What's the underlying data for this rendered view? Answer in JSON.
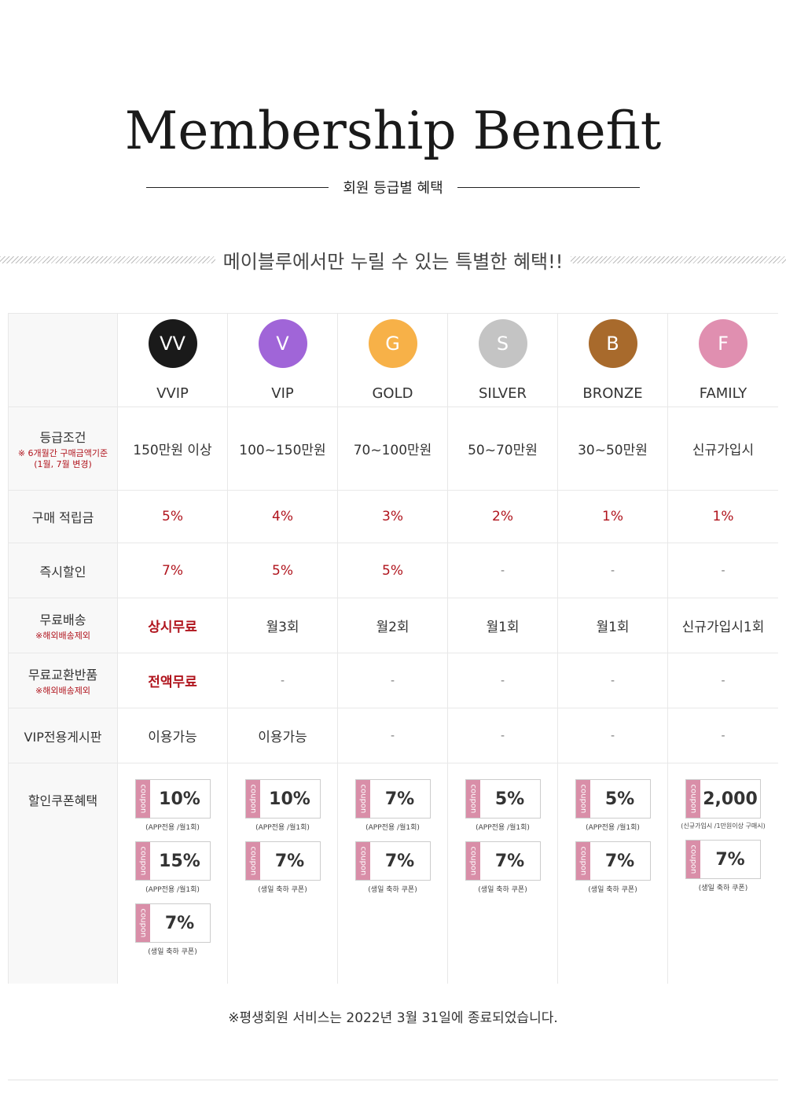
{
  "title": "Membership Benefit",
  "subtitle": "회원 등급별 혜택",
  "slogan": "메이블루에서만 누릴 수 있는 특별한 혜택!!",
  "grades": [
    {
      "badge": "VV",
      "name": "VVIP",
      "color": "#1a1a1a"
    },
    {
      "badge": "V",
      "name": "VIP",
      "color": "#a065d8"
    },
    {
      "badge": "G",
      "name": "GOLD",
      "color": "#f7b148"
    },
    {
      "badge": "S",
      "name": "SILVER",
      "color": "#c4c4c4"
    },
    {
      "badge": "B",
      "name": "BRONZE",
      "color": "#a86a2c"
    },
    {
      "badge": "F",
      "name": "FAMILY",
      "color": "#e08fb0"
    }
  ],
  "rows": {
    "condition": {
      "label": "등급조건",
      "note1": "※ 6개월간 구매금액기준",
      "note2": "(1월, 7월 변경)",
      "values": [
        "150만원 이상",
        "100~150만원",
        "70~100만원",
        "50~70만원",
        "30~50만원",
        "신규가입시"
      ]
    },
    "points": {
      "label": "구매 적립금",
      "values": [
        "5%",
        "4%",
        "3%",
        "2%",
        "1%",
        "1%"
      ]
    },
    "instant": {
      "label": "즉시할인",
      "values": [
        "7%",
        "5%",
        "5%",
        "-",
        "-",
        "-"
      ]
    },
    "shipping": {
      "label": "무료배송",
      "note": "※해외배송제외",
      "values": [
        "상시무료",
        "월3회",
        "월2회",
        "월1회",
        "월1회",
        "신규가입시1회"
      ]
    },
    "exchange": {
      "label": "무료교환반품",
      "note": "※해외배송제외",
      "values": [
        "전액무료",
        "-",
        "-",
        "-",
        "-",
        "-"
      ]
    },
    "vipboard": {
      "label": "VIP전용게시판",
      "values": [
        "이용가능",
        "이용가능",
        "-",
        "-",
        "-",
        "-"
      ]
    },
    "coupons": {
      "label": "할인쿠폰혜택",
      "tag": "coupon",
      "columns": [
        [
          {
            "value": "10%",
            "note": "(APP전용 /월1회)"
          },
          {
            "value": "15%",
            "note": "(APP전용 /월1회)"
          },
          {
            "value": "7%",
            "note": "(생일 축하 쿠폰)"
          }
        ],
        [
          {
            "value": "10%",
            "note": "(APP전용 /월1회)"
          },
          {
            "value": "7%",
            "note": "(생일 축하 쿠폰)"
          }
        ],
        [
          {
            "value": "7%",
            "note": "(APP전용 /월1회)"
          },
          {
            "value": "7%",
            "note": "(생일 축하 쿠폰)"
          }
        ],
        [
          {
            "value": "5%",
            "note": "(APP전용 /월1회)"
          },
          {
            "value": "7%",
            "note": "(생일 축하 쿠폰)"
          }
        ],
        [
          {
            "value": "5%",
            "note": "(APP전용 /월1회)"
          },
          {
            "value": "7%",
            "note": "(생일 축하 쿠폰)"
          }
        ],
        [
          {
            "value": "2,000",
            "note": "(신규가입시 /1만원이상 구매시)"
          },
          {
            "value": "7%",
            "note": "(생일 축하 쿠폰)"
          }
        ]
      ]
    }
  },
  "footer_note": "※평생회원 서비스는 2022년 3월 31일에 종료되었습니다."
}
